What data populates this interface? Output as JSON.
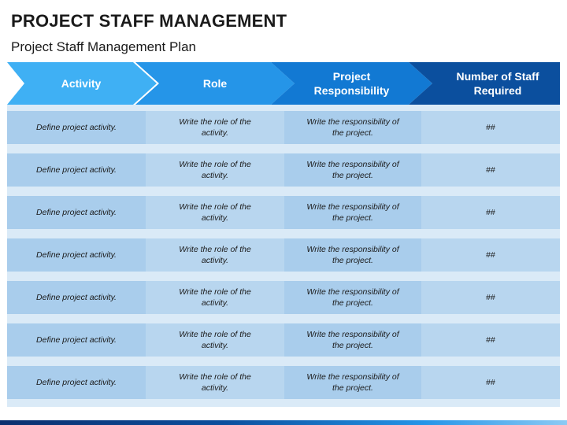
{
  "title": "PROJECT STAFF MANAGEMENT",
  "subtitle": "Project Staff Management Plan",
  "headers": [
    {
      "label": "Activity",
      "color": "#3fb0f4"
    },
    {
      "label": "Role",
      "color": "#2595e8"
    },
    {
      "label": "Project Responsibility",
      "color": "#1279d3"
    },
    {
      "label": "Number of Staff Required",
      "color": "#0b4f9e"
    }
  ],
  "rows": [
    {
      "activity": "Define project activity.",
      "role": "Write the role of the activity.",
      "responsibility": "Write the responsibility of the project.",
      "staff": "##"
    },
    {
      "activity": "Define project activity.",
      "role": "Write the role of the activity.",
      "responsibility": "Write the responsibility of the project.",
      "staff": "##"
    },
    {
      "activity": "Define project activity.",
      "role": "Write the role of the activity.",
      "responsibility": "Write the responsibility of the project.",
      "staff": "##"
    },
    {
      "activity": "Define project activity.",
      "role": "Write the role of the activity.",
      "responsibility": "Write the responsibility of the project.",
      "staff": "##"
    },
    {
      "activity": "Define project activity.",
      "role": "Write the role of the activity.",
      "responsibility": "Write the responsibility of the project.",
      "staff": "##"
    },
    {
      "activity": "Define project activity.",
      "role": "Write the role of the activity.",
      "responsibility": "Write the responsibility of the project.",
      "staff": "##"
    },
    {
      "activity": "Define project activity.",
      "role": "Write the role of the activity.",
      "responsibility": "Write the responsibility of the project.",
      "staff": "##"
    }
  ]
}
